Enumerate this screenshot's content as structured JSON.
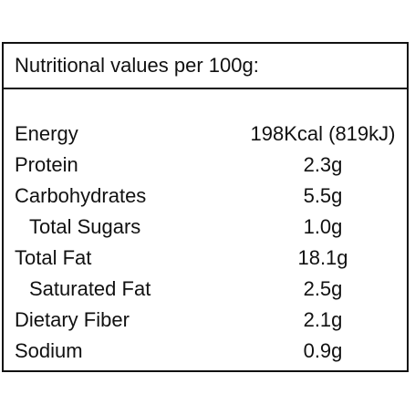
{
  "title": "Nutritional values per 100g:",
  "rows": [
    {
      "label": "Energy",
      "value": "198Kcal (819kJ)"
    },
    {
      "label": "Protein",
      "value": "2.3g"
    },
    {
      "label": "Carbohydrates",
      "value": "5.5g"
    },
    {
      "label": "Total Sugars",
      "value": "1.0g"
    },
    {
      "label": "Total Fat",
      "value": "18.1g"
    },
    {
      "label": "Saturated Fat",
      "value": "2.5g"
    },
    {
      "label": "Dietary Fiber",
      "value": "2.1g"
    },
    {
      "label": "Sodium",
      "value": "0.9g"
    }
  ]
}
